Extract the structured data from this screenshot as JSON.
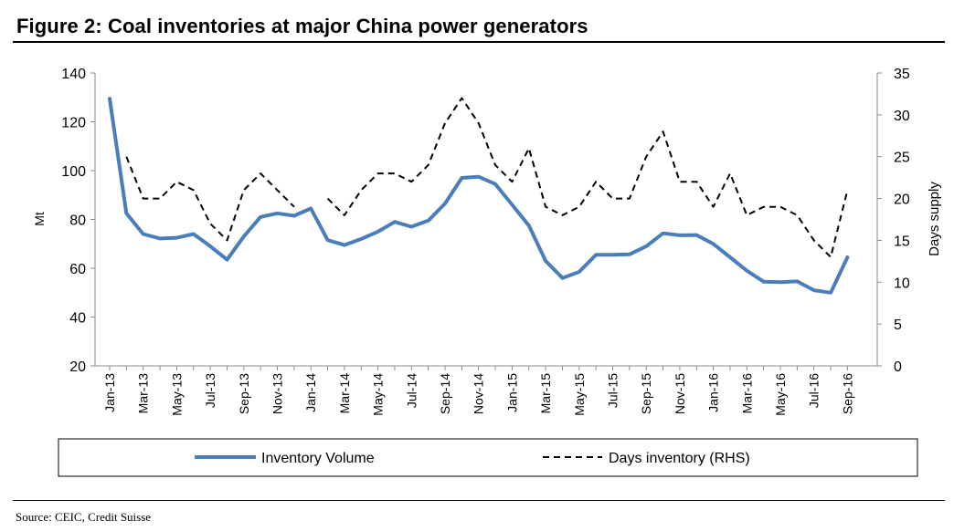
{
  "title": "Figure 2: Coal inventories at major China power generators",
  "source": "Source: CEIC, Credit Suisse",
  "chart_data": {
    "type": "line",
    "title": "Figure 2: Coal inventories at major China power generators",
    "ylabel": "Mt",
    "y2label": "Days supply",
    "ylim": [
      20,
      140
    ],
    "y2lim": [
      0,
      35
    ],
    "yticks": [
      "20",
      "40",
      "60",
      "80",
      "100",
      "120",
      "140"
    ],
    "y2ticks": [
      "0",
      "5",
      "10",
      "15",
      "20",
      "25",
      "30",
      "35"
    ],
    "x": [
      "Jan-13",
      "Feb-13",
      "Mar-13",
      "Apr-13",
      "May-13",
      "Jun-13",
      "Jul-13",
      "Aug-13",
      "Sep-13",
      "Oct-13",
      "Nov-13",
      "Dec-13",
      "Jan-14",
      "Feb-14",
      "Mar-14",
      "Apr-14",
      "May-14",
      "Jun-14",
      "Jul-14",
      "Aug-14",
      "Sep-14",
      "Oct-14",
      "Nov-14",
      "Dec-14",
      "Jan-15",
      "Feb-15",
      "Mar-15",
      "Apr-15",
      "May-15",
      "Jun-15",
      "Jul-15",
      "Aug-15",
      "Sep-15",
      "Oct-15",
      "Nov-15",
      "Dec-15",
      "Jan-16",
      "Feb-16",
      "Mar-16",
      "Apr-16",
      "May-16",
      "Jun-16",
      "Jul-16",
      "Aug-16",
      "Sep-16"
    ],
    "xtick_labels": [
      "Jan-13",
      "Mar-13",
      "May-13",
      "Jul-13",
      "Sep-13",
      "Nov-13",
      "Jan-14",
      "Mar-14",
      "May-14",
      "Jul-14",
      "Sep-14",
      "Nov-14",
      "Jan-15",
      "Mar-15",
      "May-15",
      "Jul-15",
      "Sep-15",
      "Nov-15",
      "Jan-16",
      "Mar-16",
      "May-16",
      "Jul-16",
      "Sep-16"
    ],
    "grid": false,
    "legend": "bottom",
    "series": [
      {
        "name": "Inventory Volume",
        "axis": "left",
        "style": "solid",
        "color": "#4A7EBB",
        "values": [
          129.5,
          82.5,
          74,
          72.2,
          72.5,
          74,
          69,
          63.5,
          73,
          81,
          82.5,
          81.5,
          84.5,
          71.5,
          69.5,
          72,
          75,
          79,
          77,
          79.5,
          86.5,
          97,
          97.5,
          94.5,
          86,
          77.5,
          63,
          56,
          58.5,
          65.5,
          65.5,
          65.7,
          69,
          74.3,
          73.5,
          73.6,
          70,
          64.5,
          59,
          54.5,
          54.3,
          54.6,
          51,
          50,
          64.5
        ]
      },
      {
        "name": "Days inventory (RHS)",
        "axis": "right",
        "style": "dashed",
        "color": "#000000",
        "values": [
          null,
          25,
          20,
          20,
          22,
          21,
          17,
          15,
          21,
          23,
          21,
          19,
          null,
          20,
          18,
          21,
          23,
          23,
          22,
          24,
          29,
          32,
          29,
          24,
          22,
          26,
          19,
          18,
          19,
          22,
          20,
          20,
          25,
          28,
          22,
          22,
          19,
          23,
          18,
          19,
          19,
          18,
          15,
          13,
          21
        ]
      }
    ]
  }
}
